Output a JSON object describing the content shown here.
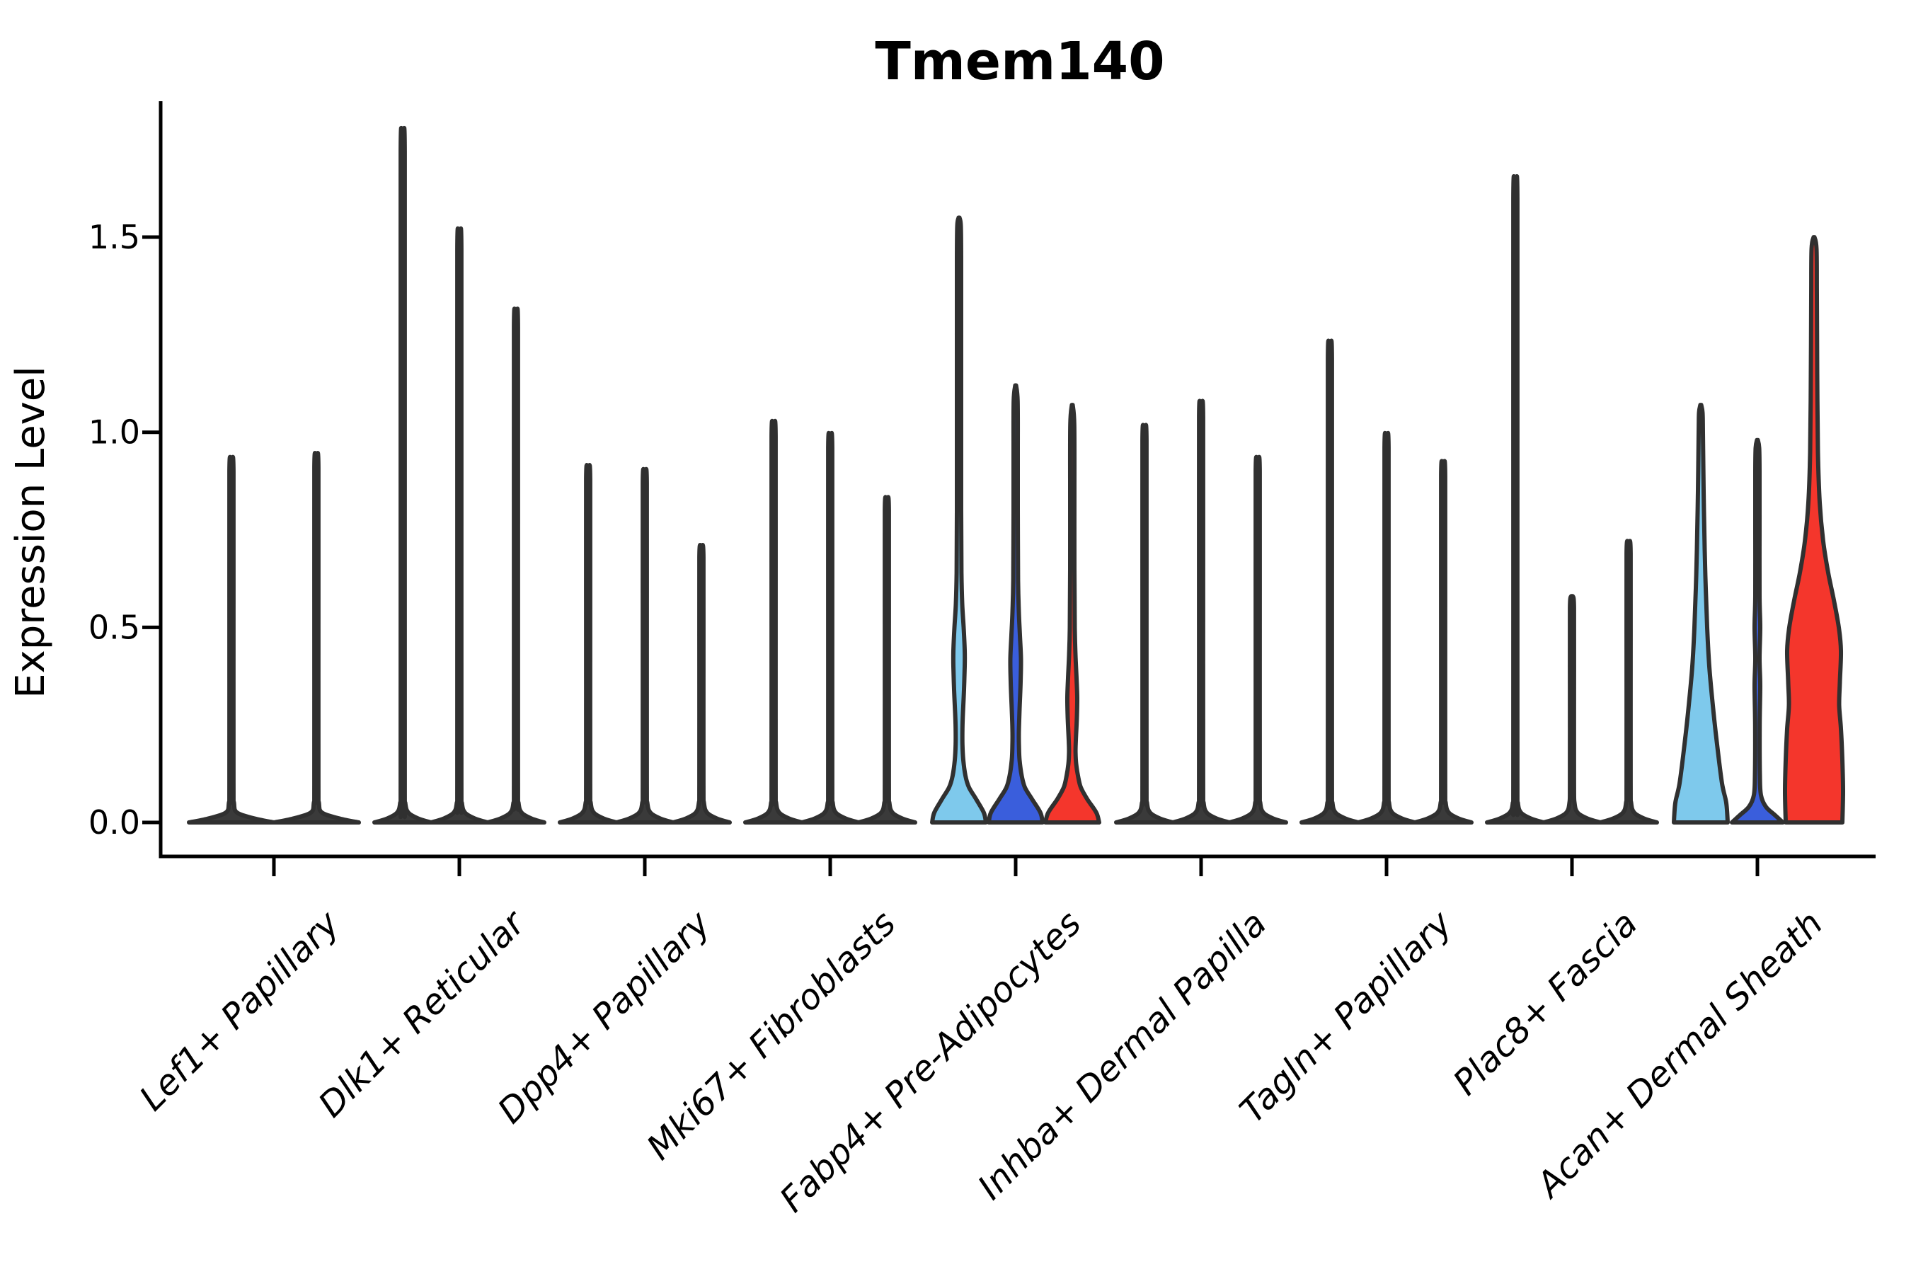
{
  "figure": {
    "title": "Tmem140",
    "ylabel": "Expression Level"
  },
  "chart_data": {
    "type": "violin",
    "title": "Tmem140",
    "xlabel": "",
    "ylabel": "Expression Level",
    "ylim": [
      0,
      1.85
    ],
    "grid": false,
    "legend": "none",
    "ytick_labels": [
      "0.0",
      "0.5",
      "1.0",
      "1.5"
    ],
    "ytick_values": [
      0,
      0.5,
      1.0,
      1.5
    ],
    "colors": {
      "sky_blue": "#7EC9EC",
      "royal_blue": "#3A5EDC",
      "red": "#F4362C",
      "spike_dark": "#3a3a3a",
      "outline": "#303030",
      "axis": "#000000"
    },
    "categories": [
      "Lef1+ Papillary",
      "Dlk1+ Reticular",
      "Dpp4+ Papillary",
      "Mki67+ Fibroblasts",
      "Fabp4+ Pre-Adipocytes",
      "Inhba+ Dermal Papilla",
      "Tagln+ Papillary",
      "Plac8+ Fascia",
      "Acan+ Dermal Sheath"
    ],
    "groups": [
      {
        "category": "Lef1+ Papillary",
        "violins": [
          {
            "shape": "spike",
            "fill": "#3a3a3a",
            "max": 0.93
          },
          {
            "shape": "spike",
            "fill": "#3a3a3a",
            "max": 0.94
          }
        ]
      },
      {
        "category": "Dlk1+ Reticular",
        "violins": [
          {
            "shape": "spike",
            "fill": "#3a3a3a",
            "max": 1.75
          },
          {
            "shape": "spike",
            "fill": "#3a3a3a",
            "max": 1.5
          },
          {
            "shape": "spike",
            "fill": "#3a3a3a",
            "max": 1.3
          }
        ]
      },
      {
        "category": "Dpp4+ Papillary",
        "violins": [
          {
            "shape": "spike",
            "fill": "#3a3a3a",
            "max": 0.91
          },
          {
            "shape": "spike",
            "fill": "#3a3a3a",
            "max": 0.9
          },
          {
            "shape": "spike",
            "fill": "#3a3a3a",
            "max": 0.71
          }
        ]
      },
      {
        "category": "Mki67+ Fibroblasts",
        "violins": [
          {
            "shape": "spike",
            "fill": "#3a3a3a",
            "max": 1.02
          },
          {
            "shape": "spike",
            "fill": "#3a3a3a",
            "max": 0.99
          },
          {
            "shape": "spike",
            "fill": "#3a3a3a",
            "max": 0.83
          }
        ]
      },
      {
        "category": "Fabp4+ Pre-Adipocytes",
        "violins": [
          {
            "shape": "violin",
            "fill": "#7EC9EC",
            "max": 1.55,
            "profile": [
              [
                0,
                38
              ],
              [
                0.025,
                35
              ],
              [
                0.06,
                24
              ],
              [
                0.09,
                14
              ],
              [
                0.12,
                9
              ],
              [
                0.16,
                6
              ],
              [
                0.2,
                4.8
              ],
              [
                0.24,
                4.8
              ],
              [
                0.28,
                5.5
              ],
              [
                0.34,
                7
              ],
              [
                0.4,
                8
              ],
              [
                0.44,
                8
              ],
              [
                0.5,
                6.5
              ],
              [
                0.56,
                4.5
              ],
              [
                0.64,
                3.4
              ],
              [
                0.8,
                3
              ],
              [
                1.0,
                3
              ],
              [
                1.25,
                3
              ],
              [
                1.45,
                3
              ],
              [
                1.53,
                2.5
              ],
              [
                1.55,
                0.6
              ]
            ]
          },
          {
            "shape": "violin",
            "fill": "#3A5EDC",
            "max": 1.12,
            "profile": [
              [
                0,
                38
              ],
              [
                0.025,
                35
              ],
              [
                0.06,
                23
              ],
              [
                0.09,
                13
              ],
              [
                0.12,
                8.5
              ],
              [
                0.16,
                5.5
              ],
              [
                0.2,
                4.6
              ],
              [
                0.24,
                4.6
              ],
              [
                0.29,
                5.5
              ],
              [
                0.36,
                7
              ],
              [
                0.42,
                7.5
              ],
              [
                0.48,
                6
              ],
              [
                0.54,
                4.5
              ],
              [
                0.62,
                3.4
              ],
              [
                0.8,
                3
              ],
              [
                0.95,
                3
              ],
              [
                1.08,
                2.8
              ],
              [
                1.12,
                0.6
              ]
            ]
          },
          {
            "shape": "violin",
            "fill": "#F4362C",
            "max": 1.07,
            "profile": [
              [
                0,
                38
              ],
              [
                0.025,
                34
              ],
              [
                0.06,
                21
              ],
              [
                0.09,
                12
              ],
              [
                0.12,
                8
              ],
              [
                0.15,
                5.5
              ],
              [
                0.18,
                4.6
              ],
              [
                0.21,
                5
              ],
              [
                0.27,
                6.5
              ],
              [
                0.32,
                7
              ],
              [
                0.37,
                6
              ],
              [
                0.43,
                4.5
              ],
              [
                0.5,
                3.5
              ],
              [
                0.65,
                3
              ],
              [
                0.85,
                3
              ],
              [
                1.02,
                2.8
              ],
              [
                1.07,
                0.6
              ]
            ]
          }
        ]
      },
      {
        "category": "Inhba+ Dermal Papilla",
        "violins": [
          {
            "shape": "spike",
            "fill": "#3a3a3a",
            "max": 1.01
          },
          {
            "shape": "spike",
            "fill": "#3a3a3a",
            "max": 1.07
          },
          {
            "shape": "spike",
            "fill": "#3a3a3a",
            "max": 0.93
          }
        ]
      },
      {
        "category": "Tagln+ Papillary",
        "violins": [
          {
            "shape": "spike",
            "fill": "#3a3a3a",
            "max": 1.22
          },
          {
            "shape": "spike",
            "fill": "#3a3a3a",
            "max": 0.99
          },
          {
            "shape": "spike",
            "fill": "#3a3a3a",
            "max": 0.92
          }
        ]
      },
      {
        "category": "Plac8+ Fascia",
        "violins": [
          {
            "shape": "spike",
            "fill": "#3a3a3a",
            "max": 1.63
          },
          {
            "shape": "spike",
            "fill": "#3a3a3a",
            "max": 0.58
          },
          {
            "shape": "spike",
            "fill": "#3a3a3a",
            "max": 0.72
          }
        ]
      },
      {
        "category": "Acan+ Dermal Sheath",
        "violins": [
          {
            "shape": "violin",
            "fill": "#7EC9EC",
            "max": 1.07,
            "profile": [
              [
                0,
                38
              ],
              [
                0.05,
                36
              ],
              [
                0.1,
                30
              ],
              [
                0.2,
                23
              ],
              [
                0.3,
                17
              ],
              [
                0.4,
                12
              ],
              [
                0.5,
                9
              ],
              [
                0.6,
                7
              ],
              [
                0.7,
                5.5
              ],
              [
                0.85,
                4
              ],
              [
                1.0,
                3
              ],
              [
                1.05,
                2.5
              ],
              [
                1.07,
                0.6
              ]
            ]
          },
          {
            "shape": "violin",
            "fill": "#3A5EDC",
            "max": 0.98,
            "profile": [
              [
                0,
                36
              ],
              [
                0.02,
                24
              ],
              [
                0.04,
                12
              ],
              [
                0.07,
                5
              ],
              [
                0.12,
                3.5
              ],
              [
                0.25,
                3.2
              ],
              [
                0.35,
                4
              ],
              [
                0.42,
                3
              ],
              [
                0.5,
                4
              ],
              [
                0.58,
                3
              ],
              [
                0.75,
                3
              ],
              [
                0.9,
                3
              ],
              [
                0.96,
                2.5
              ],
              [
                0.98,
                0.6
              ]
            ]
          },
          {
            "shape": "violin",
            "fill": "#F4362C",
            "max": 1.5,
            "profile": [
              [
                0,
                40
              ],
              [
                0.08,
                41
              ],
              [
                0.16,
                40
              ],
              [
                0.24,
                38
              ],
              [
                0.3,
                35.5
              ],
              [
                0.36,
                36.5
              ],
              [
                0.44,
                38
              ],
              [
                0.5,
                35
              ],
              [
                0.57,
                28
              ],
              [
                0.64,
                20
              ],
              [
                0.72,
                13
              ],
              [
                0.82,
                8
              ],
              [
                0.95,
                5.5
              ],
              [
                1.15,
                4.5
              ],
              [
                1.35,
                4
              ],
              [
                1.47,
                3.5
              ],
              [
                1.5,
                0.6
              ]
            ]
          }
        ]
      }
    ]
  }
}
